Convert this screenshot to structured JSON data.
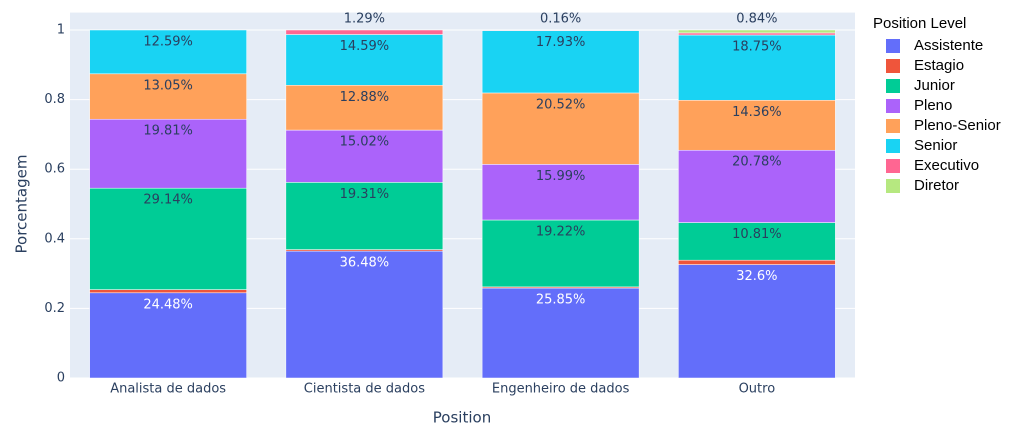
{
  "chart_data": {
    "type": "stacked_bar",
    "x_label": "Position",
    "y_label": "Porcentagem",
    "legend_title": "Position Level",
    "categories": [
      "Analista de dados",
      "Cientista de dados",
      "Engenheiro de dados",
      "Outro"
    ],
    "ylim": [
      0,
      1.05
    ],
    "yticks": [
      0,
      0.2,
      0.4,
      0.6,
      0.8,
      1
    ],
    "grid": true,
    "series": [
      {
        "name": "Assistente",
        "color": "#636efa",
        "values": [
          0.2448,
          0.3648,
          0.2585,
          0.326
        ],
        "value_labels": [
          "24.48%",
          "36.48%",
          "25.85%",
          "32.6%"
        ]
      },
      {
        "name": "Estagio",
        "color": "#ef553b",
        "values": [
          0.0093,
          0.0043,
          0.0033,
          0.0126
        ],
        "value_labels": [
          null,
          null,
          null,
          null
        ]
      },
      {
        "name": "Junior",
        "color": "#00cc96",
        "values": [
          0.2914,
          0.1931,
          0.1922,
          0.1081
        ],
        "value_labels": [
          "29.14%",
          "19.31%",
          "19.22%",
          "10.81%"
        ]
      },
      {
        "name": "Pleno",
        "color": "#ab63fa",
        "values": [
          0.1981,
          0.1502,
          0.1599,
          0.2078
        ],
        "value_labels": [
          "19.81%",
          "15.02%",
          "15.99%",
          "20.78%"
        ]
      },
      {
        "name": "Pleno-Senior",
        "color": "#ffa15a",
        "values": [
          0.1305,
          0.1288,
          0.2052,
          0.1436
        ],
        "value_labels": [
          "13.05%",
          "12.88%",
          "20.52%",
          "14.36%"
        ]
      },
      {
        "name": "Senior",
        "color": "#19d3f3",
        "values": [
          0.1259,
          0.1459,
          0.1793,
          0.1875
        ],
        "value_labels": [
          "12.59%",
          "14.59%",
          "17.93%",
          "18.75%"
        ]
      },
      {
        "name": "Executivo",
        "color": "#ff6692",
        "values": [
          0,
          0.0129,
          0.0016,
          0.006
        ],
        "value_labels": [
          null,
          "1.29%",
          "0.16%",
          null
        ]
      },
      {
        "name": "Diretor",
        "color": "#b6e880",
        "values": [
          0,
          0,
          0,
          0.0084
        ],
        "value_labels": [
          null,
          null,
          null,
          "0.84%"
        ]
      }
    ]
  }
}
